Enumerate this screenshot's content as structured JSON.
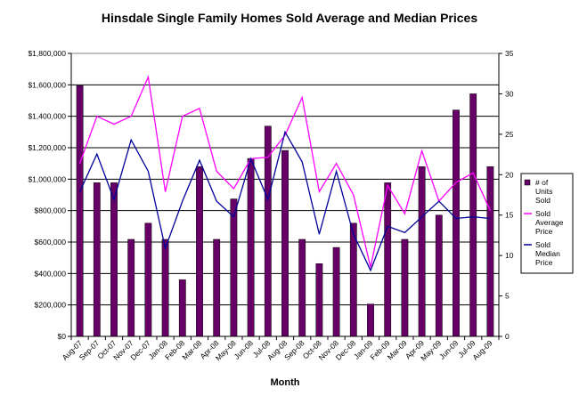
{
  "chart_data": {
    "type": "bar",
    "title": "Hinsdale Single Family Homes Sold Average and Median Prices",
    "xlabel": "Month",
    "ylabel": "",
    "categories": [
      "Aug-07",
      "Sep-07",
      "Oct-07",
      "Nov-07",
      "Dec-07",
      "Jan-08",
      "Feb-08",
      "Mar-08",
      "Apr-08",
      "May-08",
      "Jun-08",
      "Jul-08",
      "Aug-08",
      "Sep-08",
      "Oct-08",
      "Nov-08",
      "Dec-08",
      "Jan-09",
      "Feb-09",
      "Mar-09",
      "Apr-09",
      "May-09",
      "Jun-09",
      "Jul-09",
      "Aug-09"
    ],
    "left_axis": {
      "ylim": [
        0,
        1800000
      ],
      "ticks": [
        "$0",
        "$200,000",
        "$400,000",
        "$600,000",
        "$800,000",
        "$1,000,000",
        "$1,200,000",
        "$1,400,000",
        "$1,600,000",
        "$1,800,000"
      ]
    },
    "right_axis": {
      "ylim": [
        0,
        35
      ],
      "ticks": [
        "0",
        "5",
        "10",
        "15",
        "20",
        "25",
        "30",
        "35"
      ]
    },
    "grid": true,
    "legend_position": "right",
    "series": [
      {
        "name": "# of Units Sold",
        "legend_lines": [
          "# of",
          "Units",
          "Sold"
        ],
        "kind": "bar",
        "axis": "right",
        "color": "#660066",
        "values": [
          31,
          19,
          19,
          12,
          14,
          12,
          7,
          21,
          12,
          17,
          22,
          26,
          23,
          12,
          9,
          11,
          14,
          4,
          19,
          12,
          21,
          15,
          28,
          30,
          21
        ]
      },
      {
        "name": "Sold Average Price",
        "legend_lines": [
          "Sold",
          "Average",
          "Price"
        ],
        "kind": "line",
        "axis": "left",
        "color": "#ff00ff",
        "values": [
          1100000,
          1400000,
          1350000,
          1400000,
          1650000,
          920000,
          1400000,
          1450000,
          1050000,
          940000,
          1130000,
          1140000,
          1280000,
          1520000,
          920000,
          1100000,
          900000,
          440000,
          960000,
          780000,
          1180000,
          860000,
          980000,
          1040000,
          800000
        ]
      },
      {
        "name": "Sold Median Price",
        "legend_lines": [
          "Sold",
          "Median",
          "Price"
        ],
        "kind": "line",
        "axis": "left",
        "color": "#000099",
        "values": [
          920000,
          1160000,
          870000,
          1250000,
          1050000,
          560000,
          860000,
          1120000,
          860000,
          760000,
          1130000,
          870000,
          1300000,
          1110000,
          650000,
          1050000,
          650000,
          420000,
          700000,
          660000,
          760000,
          860000,
          750000,
          760000,
          750000
        ]
      }
    ]
  }
}
